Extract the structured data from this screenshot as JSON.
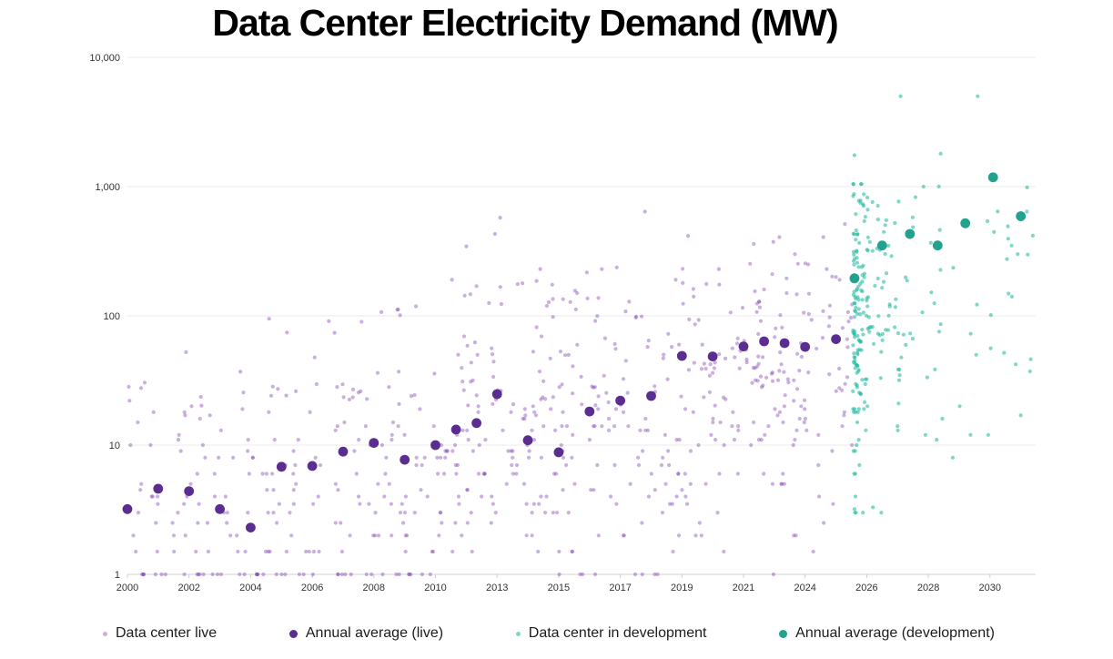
{
  "title": "Data Center Electricity Demand (MW)",
  "chart_data": {
    "type": "scatter",
    "title": "Data Center Electricity Demand (MW)",
    "xlabel": "",
    "ylabel": "",
    "y_axis": {
      "scale": "log",
      "range": [
        1,
        10000
      ],
      "grid": true,
      "ticks": [
        {
          "label": "10,000",
          "value": 10000
        },
        {
          "label": "1,000",
          "value": 1000
        },
        {
          "label": "100",
          "value": 100
        },
        {
          "label": "10",
          "value": 10
        },
        {
          "label": "1",
          "value": 1
        }
      ]
    },
    "x_axis": {
      "tick_labels": [
        "2000",
        "2002",
        "2004",
        "2006",
        "2008",
        "2010",
        "2013",
        "2015",
        "2017",
        "2019",
        "2021",
        "2024",
        "2026",
        "2028",
        "2030"
      ],
      "tick_years": [
        2000,
        2002,
        2004,
        2006,
        2008,
        2010,
        2013,
        2015,
        2017,
        2019,
        2021,
        2024,
        2026,
        2028,
        2030
      ]
    },
    "legend_position": "bottom",
    "series": [
      {
        "id": "live_scatter",
        "name": "Data center live",
        "marker": "small",
        "color": "#8140b2",
        "opacity": 0.42,
        "radius": 2.1,
        "generated": {
          "seed": 7,
          "count": 680,
          "year_start": 2000.02,
          "year_end": 2025.68,
          "year_skew": 0.92,
          "log_center_start": 0.5,
          "log_center_end": 1.6,
          "log_sd": 0.6,
          "log_min": 0,
          "log_max_start": 1.7,
          "log_max_per_year": 0.04,
          "quantize": true
        },
        "points": [
          [
            2004.6,
            95
          ],
          [
            2007.6,
            90
          ],
          [
            2010.8,
            190
          ],
          [
            2011.5,
            345
          ],
          [
            2012.0,
            170
          ],
          [
            2012.9,
            430
          ],
          [
            2013.1,
            575
          ],
          [
            2014.4,
            230
          ],
          [
            2015.6,
            150
          ],
          [
            2016.4,
            230
          ],
          [
            2017.8,
            640
          ],
          [
            2018.8,
            190
          ],
          [
            2019.2,
            415
          ],
          [
            2020.2,
            230
          ],
          [
            2021.5,
            360
          ],
          [
            2022.0,
            160
          ],
          [
            2022.4,
            210
          ],
          [
            2023.1,
            150
          ],
          [
            2023.5,
            300
          ],
          [
            2024.1,
            250
          ],
          [
            2024.7,
            230
          ],
          [
            2025.0,
            200
          ]
        ]
      },
      {
        "id": "live_avg",
        "name": "Annual average (live)",
        "marker": "large",
        "color": "#5c2d91",
        "opacity": 1,
        "radius": 5.4,
        "points": [
          [
            2000,
            3.2
          ],
          [
            2001,
            4.6
          ],
          [
            2002,
            4.4
          ],
          [
            2003,
            3.2
          ],
          [
            2004,
            2.3
          ],
          [
            2005,
            6.8
          ],
          [
            2006,
            6.9
          ],
          [
            2007,
            8.9
          ],
          [
            2008,
            10.4
          ],
          [
            2009,
            7.7
          ],
          [
            2010,
            10
          ],
          [
            2011,
            13.2
          ],
          [
            2012,
            14.8
          ],
          [
            2013,
            24.8
          ],
          [
            2014,
            10.9
          ],
          [
            2015,
            8.8
          ],
          [
            2016,
            18.2
          ],
          [
            2017,
            22.1
          ],
          [
            2018,
            24
          ],
          [
            2019,
            49
          ],
          [
            2020,
            48.5
          ],
          [
            2021,
            58
          ],
          [
            2022,
            63.5
          ],
          [
            2023,
            61.5
          ],
          [
            2024,
            57.5
          ],
          [
            2025,
            66
          ]
        ]
      },
      {
        "id": "dev_scatter",
        "name": "Data center in development",
        "marker": "small",
        "color": "#17b79a",
        "opacity": 0.55,
        "radius": 2.1,
        "generated_band": {
          "seed": 13,
          "count": 135,
          "year_base": 2025.55,
          "year_spread": 0.22,
          "year_max": 2026.4,
          "log_center": 2.0,
          "log_sd": 0.62,
          "log_min": 0.48,
          "log_max": 3.02,
          "quantize": true
        },
        "generated_spread": {
          "seed": 29,
          "count": 110,
          "year_start": 2026.0,
          "year_end": 2031.4,
          "year_skew": 1.7,
          "log_center": 2.12,
          "log_sd": 0.55,
          "log_min": 0.5,
          "log_max": 3.08,
          "quantize": true
        },
        "points": [
          [
            2027.1,
            5000
          ],
          [
            2029.6,
            5000
          ],
          [
            2025.6,
            1750
          ],
          [
            2028.4,
            1800
          ],
          [
            2025.6,
            3.2
          ],
          [
            2026.2,
            3.3
          ],
          [
            2030.9,
            300
          ],
          [
            2031.2,
            640
          ]
        ]
      },
      {
        "id": "dev_avg",
        "name": "Annual average (development)",
        "marker": "large",
        "color": "#21a18e",
        "opacity": 1,
        "radius": 5.4,
        "points": [
          [
            2025.6,
            195
          ],
          [
            2026.5,
            350
          ],
          [
            2027.4,
            430
          ],
          [
            2028.3,
            350
          ],
          [
            2029.2,
            520
          ],
          [
            2030.1,
            1180
          ],
          [
            2031.0,
            590
          ]
        ]
      }
    ]
  }
}
